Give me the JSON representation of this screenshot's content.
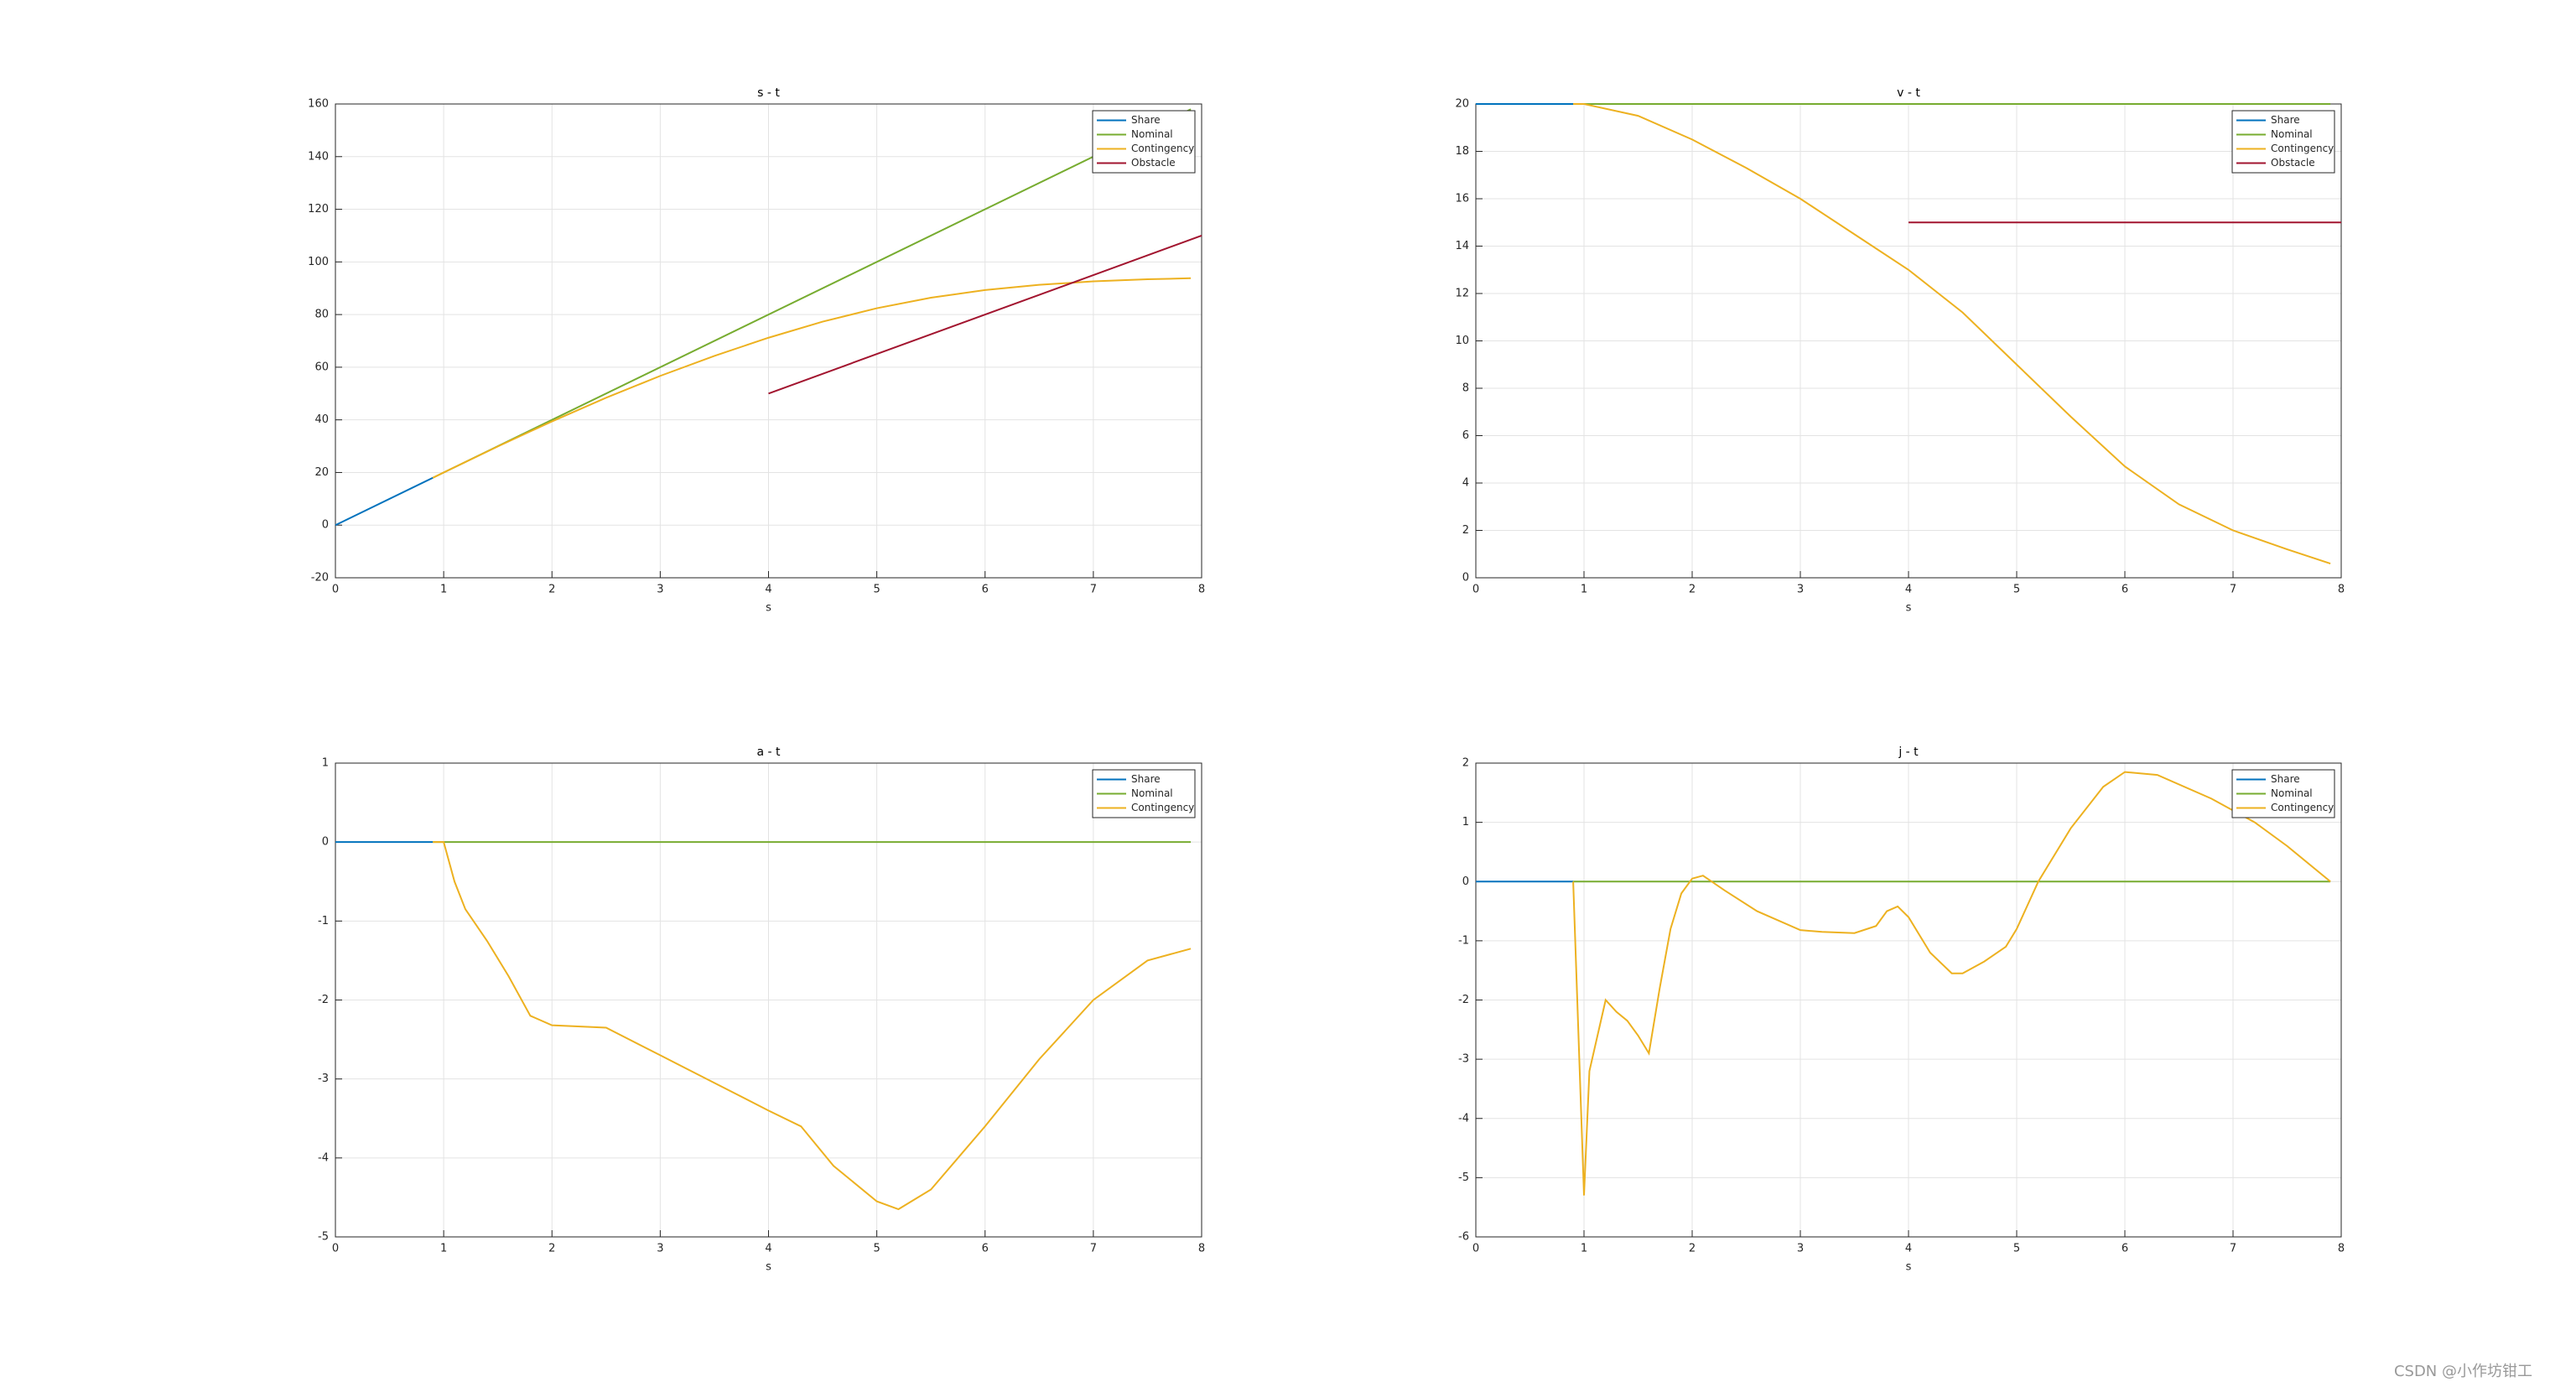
{
  "chart_data": [
    {
      "type": "line",
      "title": "s - t",
      "xlabel": "s",
      "xlim": [
        0,
        8
      ],
      "xticks": [
        0,
        1,
        2,
        3,
        4,
        5,
        6,
        7,
        8
      ],
      "ylim": [
        -20,
        160
      ],
      "yticks": [
        -20,
        0,
        20,
        40,
        60,
        80,
        100,
        120,
        140,
        160
      ],
      "grid": true,
      "legend": "northeast",
      "series": [
        {
          "name": "Share",
          "color": "#0072BD",
          "x": [
            0,
            0.9
          ],
          "values": [
            0,
            18
          ]
        },
        {
          "name": "Nominal",
          "color": "#77AC30",
          "x": [
            0.9,
            7.9
          ],
          "values": [
            18,
            158
          ]
        },
        {
          "name": "Contingency",
          "color": "#EDB120",
          "x": [
            0.9,
            1,
            1.5,
            2,
            2.5,
            3,
            3.5,
            4,
            4.5,
            5,
            5.5,
            6,
            6.5,
            7,
            7.5,
            7.9
          ],
          "values": [
            18,
            20,
            29.9,
            39.4,
            48.4,
            56.7,
            64.3,
            71.2,
            77.3,
            82.4,
            86.4,
            89.3,
            91.3,
            92.6,
            93.4,
            93.8
          ]
        },
        {
          "name": "Obstacle",
          "color": "#A2142F",
          "x": [
            4,
            8
          ],
          "values": [
            50,
            110
          ]
        }
      ]
    },
    {
      "type": "line",
      "title": "v - t",
      "xlabel": "s",
      "xlim": [
        0,
        8
      ],
      "xticks": [
        0,
        1,
        2,
        3,
        4,
        5,
        6,
        7,
        8
      ],
      "ylim": [
        0,
        20
      ],
      "yticks": [
        0,
        2,
        4,
        6,
        8,
        10,
        12,
        14,
        16,
        18,
        20
      ],
      "grid": true,
      "legend": "northeast",
      "series": [
        {
          "name": "Share",
          "color": "#0072BD",
          "x": [
            0,
            0.9
          ],
          "values": [
            20,
            20
          ]
        },
        {
          "name": "Nominal",
          "color": "#77AC30",
          "x": [
            0.9,
            7.9
          ],
          "values": [
            20,
            20
          ]
        },
        {
          "name": "Contingency",
          "color": "#EDB120",
          "x": [
            0.9,
            1,
            1.5,
            2,
            2.5,
            3,
            3.5,
            4,
            4.5,
            5,
            5.5,
            6,
            6.5,
            7,
            7.5,
            7.9
          ],
          "values": [
            20,
            20,
            19.5,
            18.5,
            17.3,
            16,
            14.5,
            13,
            11.2,
            9,
            6.8,
            4.7,
            3.1,
            2,
            1.2,
            0.6
          ]
        },
        {
          "name": "Obstacle",
          "color": "#A2142F",
          "x": [
            4,
            8
          ],
          "values": [
            15,
            15
          ]
        }
      ]
    },
    {
      "type": "line",
      "title": "a - t",
      "xlabel": "s",
      "xlim": [
        0,
        8
      ],
      "xticks": [
        0,
        1,
        2,
        3,
        4,
        5,
        6,
        7,
        8
      ],
      "ylim": [
        -5,
        1
      ],
      "yticks": [
        -5,
        -4,
        -3,
        -2,
        -1,
        0,
        1
      ],
      "grid": true,
      "legend": "northeast",
      "series": [
        {
          "name": "Share",
          "color": "#0072BD",
          "x": [
            0,
            0.9
          ],
          "values": [
            0,
            0
          ]
        },
        {
          "name": "Nominal",
          "color": "#77AC30",
          "x": [
            0.9,
            7.9
          ],
          "values": [
            0,
            0
          ]
        },
        {
          "name": "Contingency",
          "color": "#EDB120",
          "x": [
            0.9,
            1,
            1.1,
            1.2,
            1.4,
            1.6,
            1.8,
            2,
            2.5,
            3,
            3.5,
            4,
            4.3,
            4.6,
            5,
            5.2,
            5.5,
            6,
            6.5,
            7,
            7.5,
            7.9
          ],
          "values": [
            0,
            0,
            -0.5,
            -0.85,
            -1.25,
            -1.7,
            -2.2,
            -2.32,
            -2.35,
            -2.7,
            -3.05,
            -3.4,
            -3.6,
            -4.1,
            -4.55,
            -4.65,
            -4.4,
            -3.6,
            -2.75,
            -2,
            -1.5,
            -1.35
          ]
        }
      ]
    },
    {
      "type": "line",
      "title": "j - t",
      "xlabel": "s",
      "xlim": [
        0,
        8
      ],
      "xticks": [
        0,
        1,
        2,
        3,
        4,
        5,
        6,
        7,
        8
      ],
      "ylim": [
        -6,
        2
      ],
      "yticks": [
        -6,
        -5,
        -4,
        -3,
        -2,
        -1,
        0,
        1,
        2
      ],
      "grid": true,
      "legend": "northeast",
      "series": [
        {
          "name": "Share",
          "color": "#0072BD",
          "x": [
            0,
            0.9
          ],
          "values": [
            0,
            0
          ]
        },
        {
          "name": "Nominal",
          "color": "#77AC30",
          "x": [
            0.9,
            7.9
          ],
          "values": [
            0,
            0
          ]
        },
        {
          "name": "Contingency",
          "color": "#EDB120",
          "x": [
            0.9,
            1,
            1.05,
            1.2,
            1.3,
            1.4,
            1.5,
            1.6,
            1.7,
            1.8,
            1.9,
            2,
            2.1,
            2.3,
            2.6,
            3,
            3.2,
            3.5,
            3.7,
            3.8,
            3.9,
            4,
            4.2,
            4.4,
            4.5,
            4.7,
            4.9,
            5,
            5.2,
            5.5,
            5.8,
            6,
            6.3,
            6.8,
            7.2,
            7.5,
            7.9
          ],
          "values": [
            0,
            -5.3,
            -3.2,
            -2,
            -2.2,
            -2.35,
            -2.6,
            -2.9,
            -1.8,
            -0.8,
            -0.2,
            0.05,
            0.1,
            -0.15,
            -0.5,
            -0.82,
            -0.85,
            -0.87,
            -0.75,
            -0.5,
            -0.42,
            -0.6,
            -1.2,
            -1.55,
            -1.55,
            -1.35,
            -1.1,
            -0.8,
            0,
            0.9,
            1.6,
            1.85,
            1.8,
            1.4,
            1,
            0.6,
            0
          ]
        }
      ]
    }
  ],
  "watermark": "CSDN @小作坊钳工"
}
